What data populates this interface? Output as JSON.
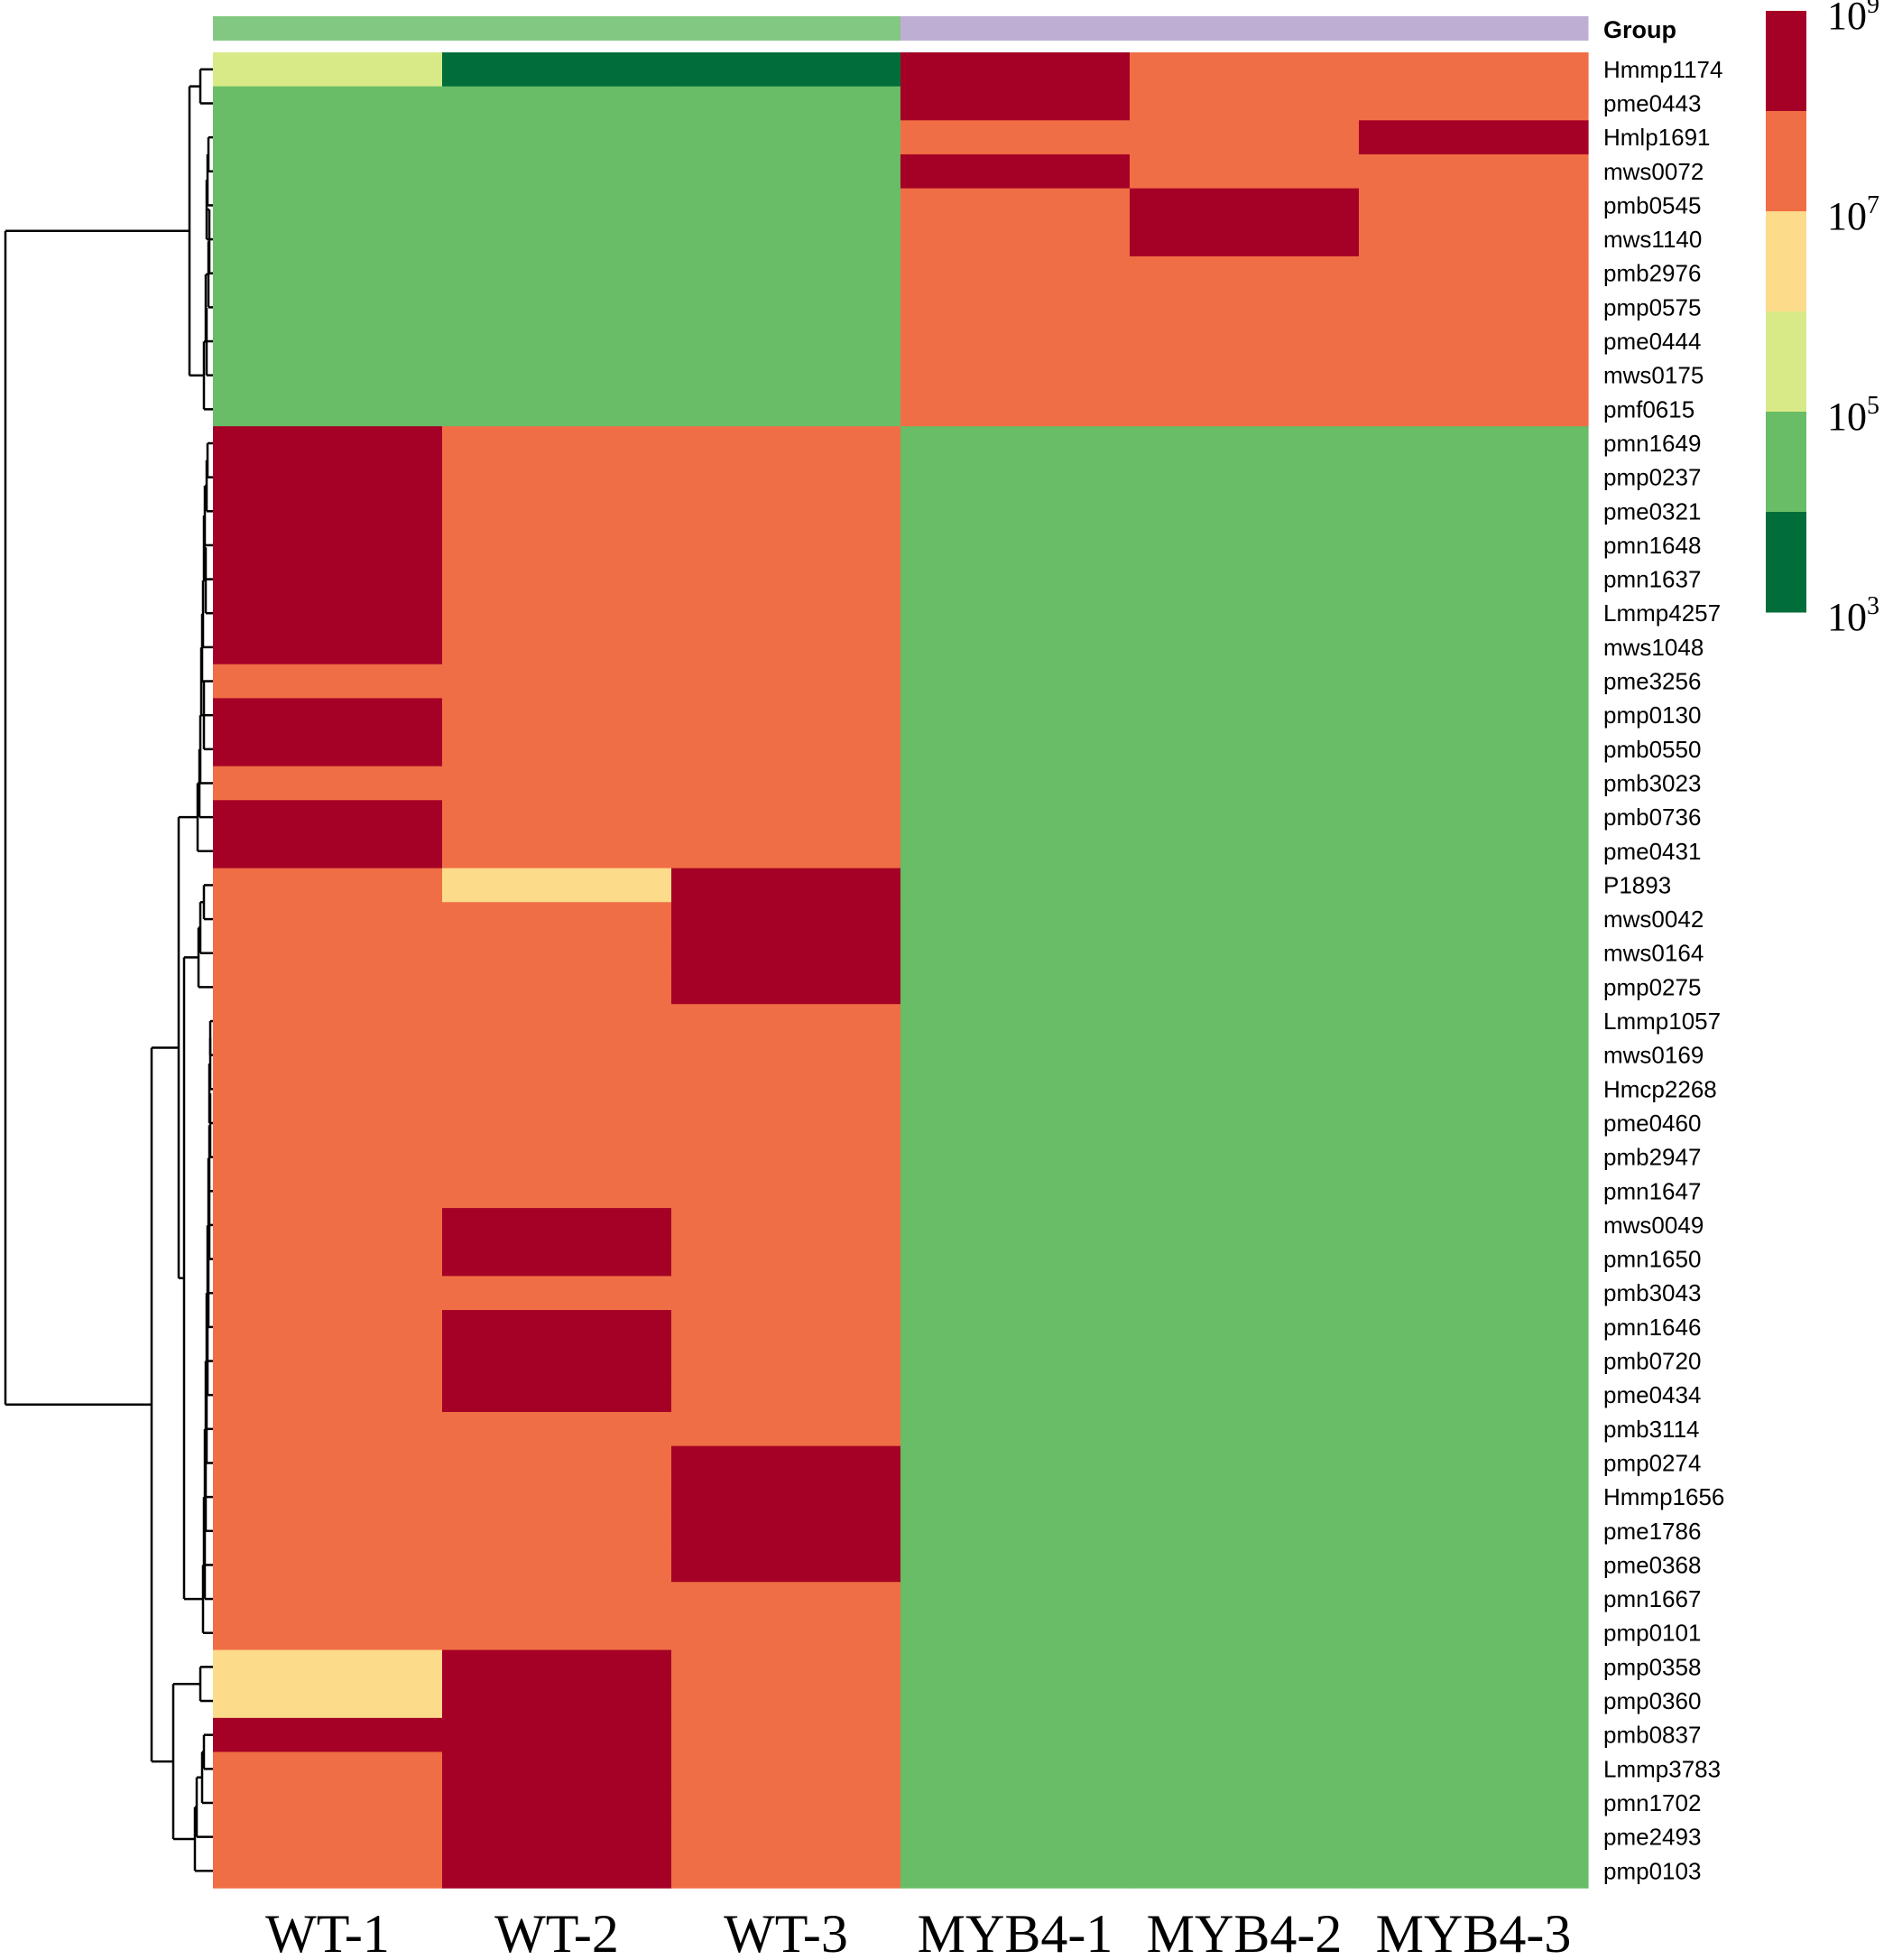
{
  "chart_data": {
    "type": "heatmap",
    "group_annotation": {
      "title": "Group",
      "colors": [
        "#82c882",
        "#bfaed4"
      ],
      "col_group": [
        0,
        0,
        0,
        1,
        1,
        1
      ]
    },
    "columns": [
      "WT-1",
      "WT-2",
      "WT-3",
      "MYB4-1",
      "MYB4-2",
      "MYB4-3"
    ],
    "rows": [
      "Hmmp1174",
      "pme0443",
      "Hmlp1691",
      "mws0072",
      "pmb0545",
      "mws1140",
      "pmb2976",
      "pmp0575",
      "pme0444",
      "mws0175",
      "pmf0615",
      "pmn1649",
      "pmp0237",
      "pme0321",
      "pmn1648",
      "pmn1637",
      "Lmmp4257",
      "mws1048",
      "pme3256",
      "pmp0130",
      "pmb0550",
      "pmb3023",
      "pmb0736",
      "pme0431",
      "P1893",
      "mws0042",
      "mws0164",
      "pmp0275",
      "Lmmp1057",
      "mws0169",
      "Hmcp2268",
      "pme0460",
      "pmb2947",
      "pmn1647",
      "mws0049",
      "pmn1650",
      "pmb3043",
      "pmn1646",
      "pmb0720",
      "pme0434",
      "pmb3114",
      "pmp0274",
      "Hmmp1656",
      "pme1786",
      "pme0368",
      "pmn1667",
      "pmp0101",
      "pmp0358",
      "pmp0360",
      "pmb0837",
      "Lmmp3783",
      "pmn1702",
      "pme2493",
      "pmp0103"
    ],
    "value_scale": "log10 intensity; bins 10^3-10^4, 10^4-10^5, 10^5-10^6, 10^6-10^7, 10^7-10^8, 10^8-10^9",
    "bin_colors": [
      "#006d3a",
      "#68bd66",
      "#d8ea88",
      "#fcdb8a",
      "#f06e45",
      "#a50026"
    ],
    "values": [
      [
        2,
        0,
        0,
        5,
        4,
        4
      ],
      [
        1,
        1,
        1,
        5,
        4,
        4
      ],
      [
        1,
        1,
        1,
        4,
        4,
        5
      ],
      [
        1,
        1,
        1,
        5,
        4,
        4
      ],
      [
        1,
        1,
        1,
        4,
        5,
        4
      ],
      [
        1,
        1,
        1,
        4,
        5,
        4
      ],
      [
        1,
        1,
        1,
        4,
        4,
        4
      ],
      [
        1,
        1,
        1,
        4,
        4,
        4
      ],
      [
        1,
        1,
        1,
        4,
        4,
        4
      ],
      [
        1,
        1,
        1,
        4,
        4,
        4
      ],
      [
        1,
        1,
        1,
        4,
        4,
        4
      ],
      [
        5,
        4,
        4,
        1,
        1,
        1
      ],
      [
        5,
        4,
        4,
        1,
        1,
        1
      ],
      [
        5,
        4,
        4,
        1,
        1,
        1
      ],
      [
        5,
        4,
        4,
        1,
        1,
        1
      ],
      [
        5,
        4,
        4,
        1,
        1,
        1
      ],
      [
        5,
        4,
        4,
        1,
        1,
        1
      ],
      [
        5,
        4,
        4,
        1,
        1,
        1
      ],
      [
        4,
        4,
        4,
        1,
        1,
        1
      ],
      [
        5,
        4,
        4,
        1,
        1,
        1
      ],
      [
        5,
        4,
        4,
        1,
        1,
        1
      ],
      [
        4,
        4,
        4,
        1,
        1,
        1
      ],
      [
        5,
        4,
        4,
        1,
        1,
        1
      ],
      [
        5,
        4,
        4,
        1,
        1,
        1
      ],
      [
        4,
        3,
        5,
        1,
        1,
        1
      ],
      [
        4,
        4,
        5,
        1,
        1,
        1
      ],
      [
        4,
        4,
        5,
        1,
        1,
        1
      ],
      [
        4,
        4,
        5,
        1,
        1,
        1
      ],
      [
        4,
        4,
        4,
        1,
        1,
        1
      ],
      [
        4,
        4,
        4,
        1,
        1,
        1
      ],
      [
        4,
        4,
        4,
        1,
        1,
        1
      ],
      [
        4,
        4,
        4,
        1,
        1,
        1
      ],
      [
        4,
        4,
        4,
        1,
        1,
        1
      ],
      [
        4,
        4,
        4,
        1,
        1,
        1
      ],
      [
        4,
        5,
        4,
        1,
        1,
        1
      ],
      [
        4,
        5,
        4,
        1,
        1,
        1
      ],
      [
        4,
        4,
        4,
        1,
        1,
        1
      ],
      [
        4,
        5,
        4,
        1,
        1,
        1
      ],
      [
        4,
        5,
        4,
        1,
        1,
        1
      ],
      [
        4,
        5,
        4,
        1,
        1,
        1
      ],
      [
        4,
        4,
        4,
        1,
        1,
        1
      ],
      [
        4,
        4,
        5,
        1,
        1,
        1
      ],
      [
        4,
        4,
        5,
        1,
        1,
        1
      ],
      [
        4,
        4,
        5,
        1,
        1,
        1
      ],
      [
        4,
        4,
        5,
        1,
        1,
        1
      ],
      [
        4,
        4,
        4,
        1,
        1,
        1
      ],
      [
        4,
        4,
        4,
        1,
        1,
        1
      ],
      [
        3,
        5,
        4,
        1,
        1,
        1
      ],
      [
        3,
        5,
        4,
        1,
        1,
        1
      ],
      [
        5,
        5,
        4,
        1,
        1,
        1
      ],
      [
        4,
        5,
        4,
        1,
        1,
        1
      ],
      [
        4,
        5,
        4,
        1,
        1,
        1
      ],
      [
        4,
        5,
        4,
        1,
        1,
        1
      ],
      [
        4,
        5,
        4,
        1,
        1,
        1
      ]
    ],
    "legend": {
      "tick_exponents": [
        "9",
        "7",
        "5",
        "3"
      ],
      "tick_base": "10"
    }
  }
}
